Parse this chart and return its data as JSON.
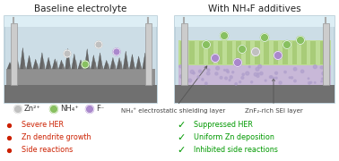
{
  "title_left": "Baseline electrolyte",
  "title_right": "With NH₄F additives",
  "bg_color": "#ffffff",
  "electrolyte_color": "#ccdde6",
  "electrolyte_top_color": "#ddeef5",
  "glass_edge_color": "#b8cdd8",
  "dendrite_color": "#888888",
  "electrode_dark": "#707070",
  "electrode_mid": "#999999",
  "shielding_layer_color": "#bedd96",
  "shielding_stripe_color": "#a8cc78",
  "sei_layer_color": "#c8b8d8",
  "sei_dot_color": "#b8a8cc",
  "zn_dot_color": "#c0c0c0",
  "nh4_dot_color": "#88c060",
  "f_dot_color": "#aa88cc",
  "bullet_red": "#cc2000",
  "check_green": "#009900",
  "annotation_color": "#444444",
  "label_color": "#333333",
  "left_bullets": [
    "Severe HER",
    "Zn dendrite growth",
    "Side reactions"
  ],
  "right_checks": [
    "Suppressed HER",
    "Uniform Zn deposition",
    "Inhibited side reactions"
  ],
  "ion_labels": [
    "Zn²⁺",
    "NH₄⁺",
    "F⁻"
  ],
  "layer_label_0": "NH₄⁺ electrostatic shielding layer",
  "layer_label_1": "ZnF₂-rich SEI layer",
  "title_fontsize": 7.5,
  "label_fontsize": 5.8,
  "ann_fontsize": 5.0,
  "ion_label_fontsize": 6.0
}
